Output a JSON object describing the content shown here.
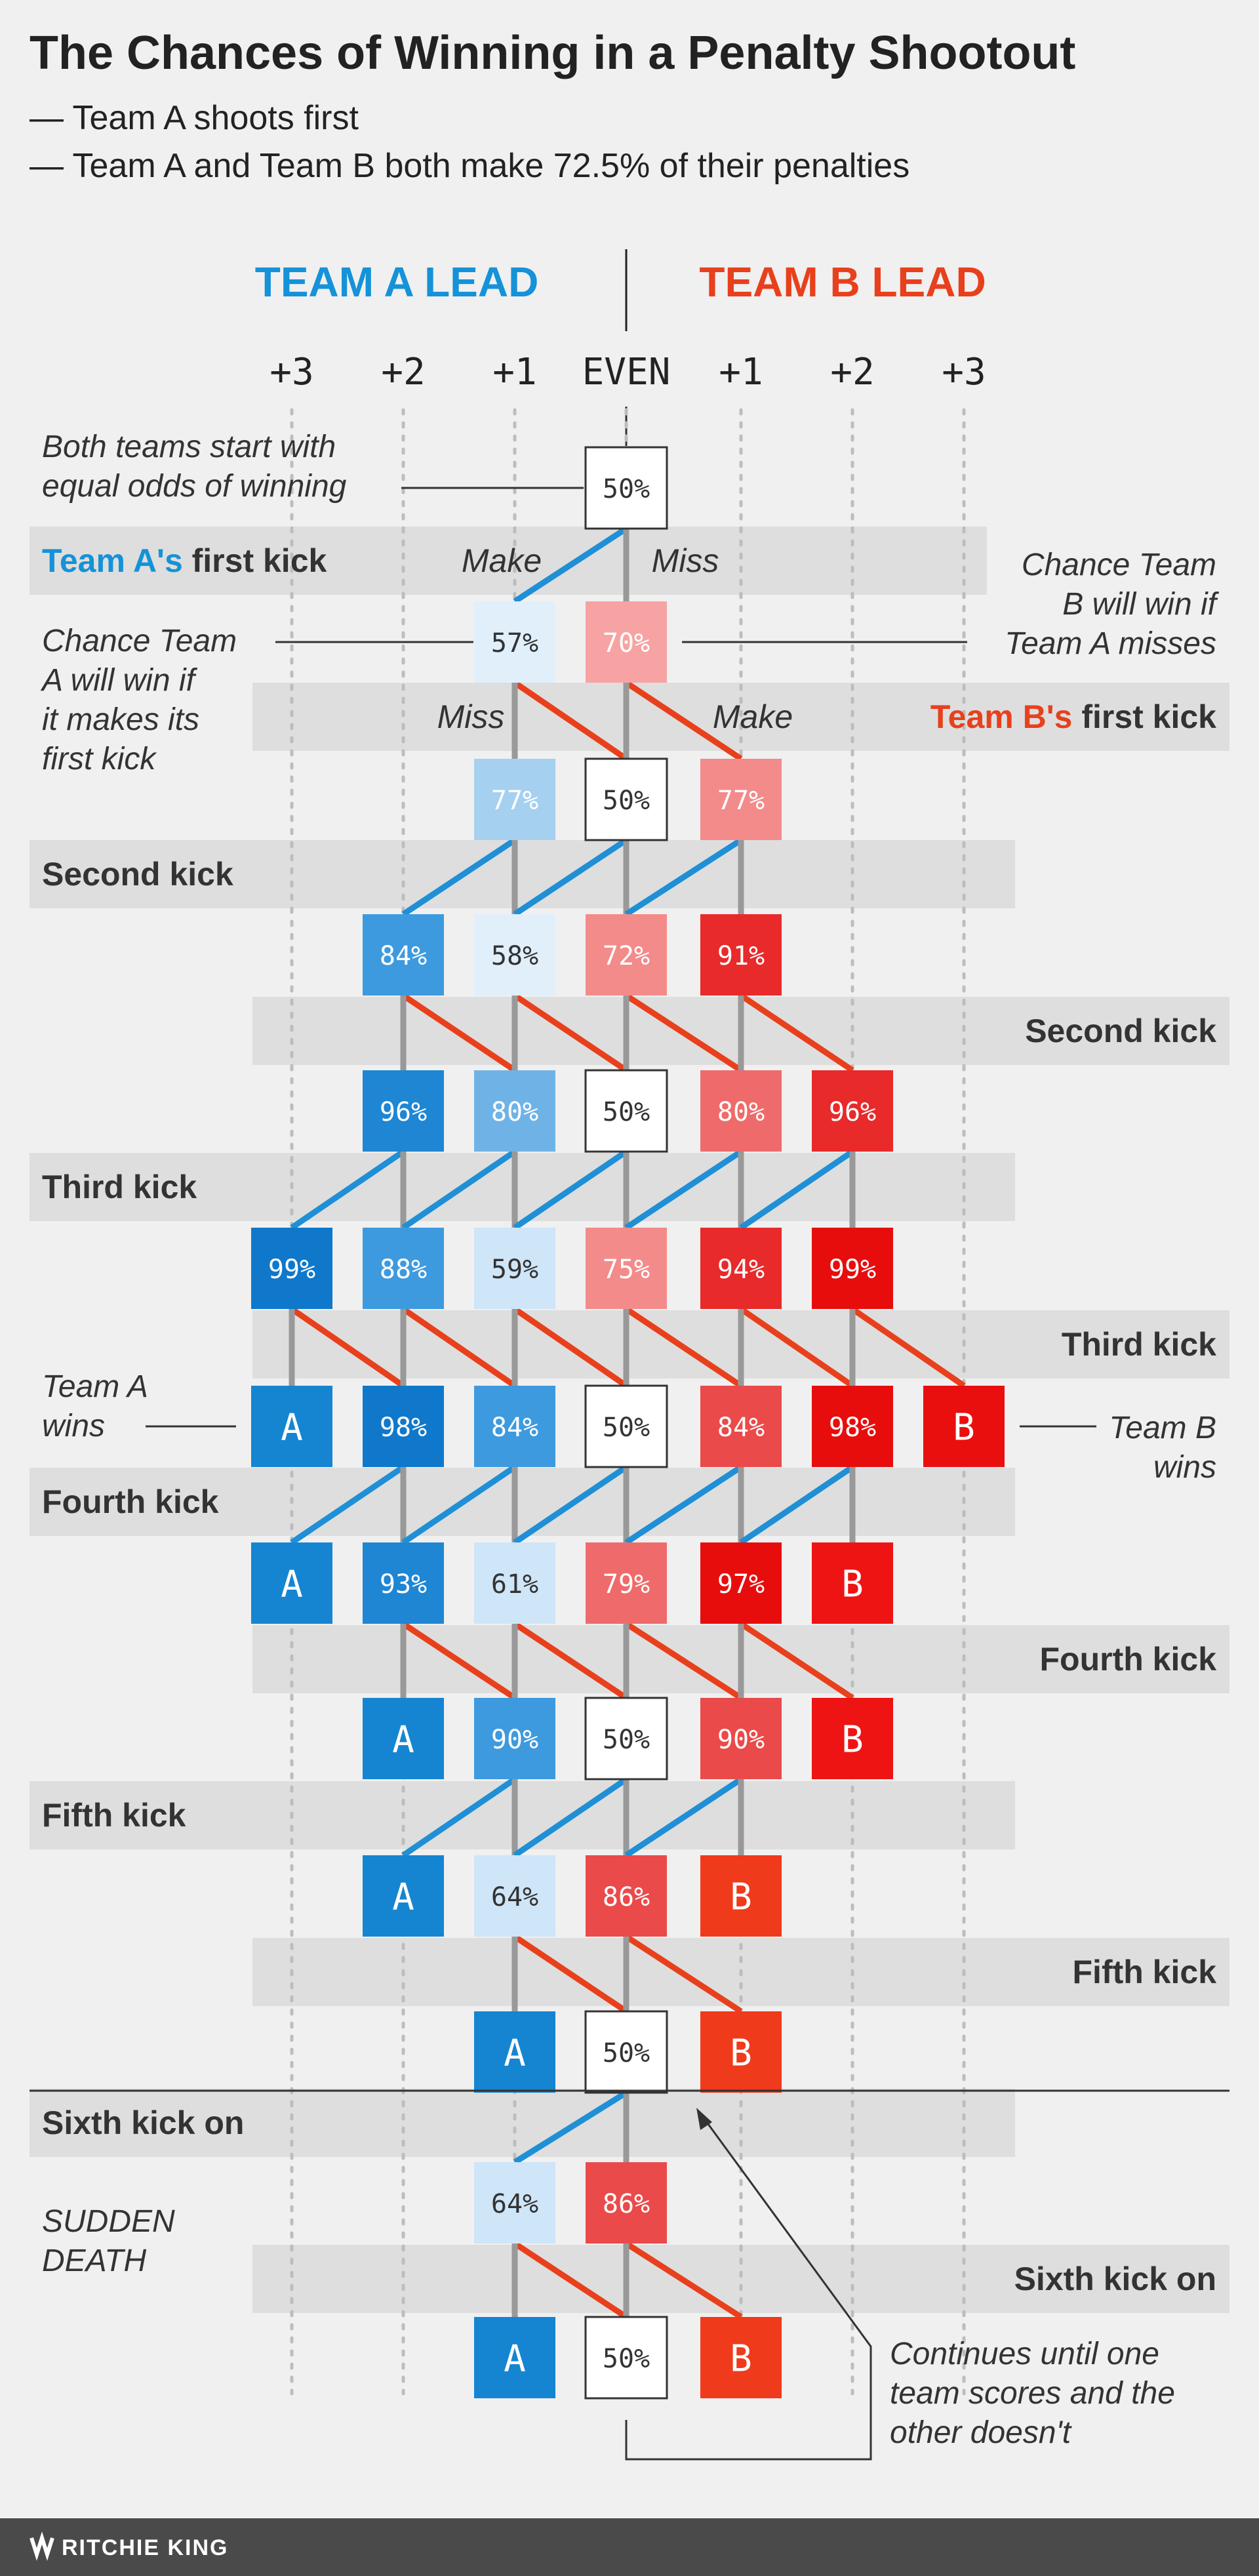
{
  "title": "The Chances of Winning in a Penalty Shootout",
  "subtitle_lines": [
    "— Team A shoots first",
    "— Team A and Team B both make 72.5% of their penalties"
  ],
  "lead_labels": {
    "team_a": "TEAM A LEAD",
    "team_b": "TEAM B LEAD"
  },
  "columns": [
    "+3",
    "+2",
    "+1",
    "EVEN",
    "+1",
    "+2",
    "+3"
  ],
  "colors": {
    "team_a_text": "#1592d8",
    "team_b_text": "#e8401c",
    "make_a_line": "#1f8fd6",
    "miss_line": "#e8401c",
    "band": "#dedede",
    "dotted": "#bdbdbd",
    "vertical_line": "#999999",
    "footer": "#4a4a4a"
  },
  "bands": [
    {
      "side": "left",
      "label_pre": "Team A's",
      "label_rest": " first kick",
      "make": "Make",
      "miss": "Miss"
    },
    {
      "side": "right",
      "label_pre": "Team B's",
      "label_rest": " first kick",
      "make": "Make",
      "miss": "Miss"
    },
    {
      "side": "left",
      "label": "Second kick"
    },
    {
      "side": "right",
      "label": "Second kick"
    },
    {
      "side": "left",
      "label": "Third kick"
    },
    {
      "side": "right",
      "label": "Third kick"
    },
    {
      "side": "left",
      "label": "Fourth kick"
    },
    {
      "side": "right",
      "label": "Fourth kick"
    },
    {
      "side": "left",
      "label": "Fifth kick"
    },
    {
      "side": "right",
      "label": "Fifth kick"
    },
    {
      "side": "left",
      "label": "Sixth kick on"
    },
    {
      "side": "right",
      "label": "Sixth kick on"
    }
  ],
  "rows": [
    [
      {
        "c": 3,
        "v": "50%"
      }
    ],
    [
      {
        "c": 2,
        "v": "57%"
      },
      {
        "c": 3,
        "v": "70%"
      }
    ],
    [
      {
        "c": 2,
        "v": "77%"
      },
      {
        "c": 3,
        "v": "50%"
      },
      {
        "c": 4,
        "v": "77%"
      }
    ],
    [
      {
        "c": 1,
        "v": "84%"
      },
      {
        "c": 2,
        "v": "58%"
      },
      {
        "c": 3,
        "v": "72%"
      },
      {
        "c": 4,
        "v": "91%"
      }
    ],
    [
      {
        "c": 1,
        "v": "96%"
      },
      {
        "c": 2,
        "v": "80%"
      },
      {
        "c": 3,
        "v": "50%"
      },
      {
        "c": 4,
        "v": "80%"
      },
      {
        "c": 5,
        "v": "96%"
      }
    ],
    [
      {
        "c": 0,
        "v": "99%"
      },
      {
        "c": 1,
        "v": "88%"
      },
      {
        "c": 2,
        "v": "59%"
      },
      {
        "c": 3,
        "v": "75%"
      },
      {
        "c": 4,
        "v": "94%"
      },
      {
        "c": 5,
        "v": "99%"
      }
    ],
    [
      {
        "c": 0,
        "v": "A"
      },
      {
        "c": 1,
        "v": "98%"
      },
      {
        "c": 2,
        "v": "84%"
      },
      {
        "c": 3,
        "v": "50%"
      },
      {
        "c": 4,
        "v": "84%"
      },
      {
        "c": 5,
        "v": "98%"
      },
      {
        "c": 6,
        "v": "B"
      }
    ],
    [
      {
        "c": 0,
        "v": "A"
      },
      {
        "c": 1,
        "v": "93%"
      },
      {
        "c": 2,
        "v": "61%"
      },
      {
        "c": 3,
        "v": "79%"
      },
      {
        "c": 4,
        "v": "97%"
      },
      {
        "c": 5,
        "v": "B"
      }
    ],
    [
      {
        "c": 1,
        "v": "A"
      },
      {
        "c": 2,
        "v": "90%"
      },
      {
        "c": 3,
        "v": "50%"
      },
      {
        "c": 4,
        "v": "90%"
      },
      {
        "c": 5,
        "v": "B"
      }
    ],
    [
      {
        "c": 1,
        "v": "A"
      },
      {
        "c": 2,
        "v": "64%"
      },
      {
        "c": 3,
        "v": "86%"
      },
      {
        "c": 4,
        "v": "B"
      }
    ],
    [
      {
        "c": 2,
        "v": "A"
      },
      {
        "c": 3,
        "v": "50%"
      },
      {
        "c": 4,
        "v": "B"
      }
    ],
    [
      {
        "c": 2,
        "v": "64%"
      },
      {
        "c": 3,
        "v": "86%"
      }
    ],
    [
      {
        "c": 2,
        "v": "A"
      },
      {
        "c": 3,
        "v": "50%"
      },
      {
        "c": 4,
        "v": "B"
      }
    ]
  ],
  "notes": {
    "start": [
      "Both teams start with",
      "equal odds of winning"
    ],
    "a_makes": [
      "Chance Team",
      "A will win if",
      "it makes its",
      "first kick"
    ],
    "b_wins_if": [
      "Chance Team",
      "B will win if",
      "Team A misses"
    ],
    "a_wins": [
      "Team A",
      "wins"
    ],
    "b_wins": [
      "Team B",
      "wins"
    ],
    "sudden_death": [
      "SUDDEN",
      "DEATH"
    ],
    "continues": [
      "Continues until one",
      "team scores and the",
      "other doesn't"
    ]
  },
  "footer": "RITCHIE KING"
}
